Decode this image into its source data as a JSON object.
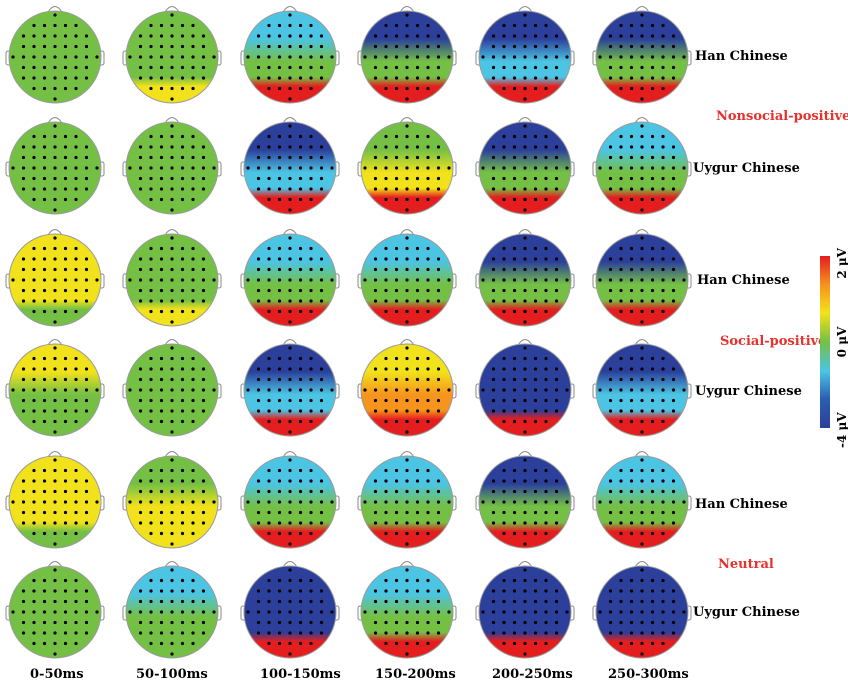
{
  "groups": {
    "han": "Han Chinese",
    "uygur": "Uygur Chinese"
  },
  "conditions": [
    "Nonsocial-positive",
    "Social-positive",
    "Neutral"
  ],
  "time_windows": [
    "0-50ms",
    "50-100ms",
    "100-150ms",
    "150-200ms",
    "200-250ms",
    "250-300ms"
  ],
  "colorbar": {
    "max_label": "2 μV",
    "mid_label": "0 μV",
    "min_label": "-4 μV",
    "colors": [
      "#e41e1e",
      "#f7941d",
      "#f2e21b",
      "#74c045",
      "#4cc4e4",
      "#2b5fb0",
      "#2b3f9b"
    ]
  },
  "rows": [
    {
      "group": "han",
      "condition": "Nonsocial-positive"
    },
    {
      "group": "uygur",
      "condition": "Nonsocial-positive"
    },
    {
      "group": "han",
      "condition": "Social-positive"
    },
    {
      "group": "uygur",
      "condition": "Social-positive"
    },
    {
      "group": "han",
      "condition": "Neutral"
    },
    {
      "group": "uygur",
      "condition": "Neutral"
    }
  ]
}
